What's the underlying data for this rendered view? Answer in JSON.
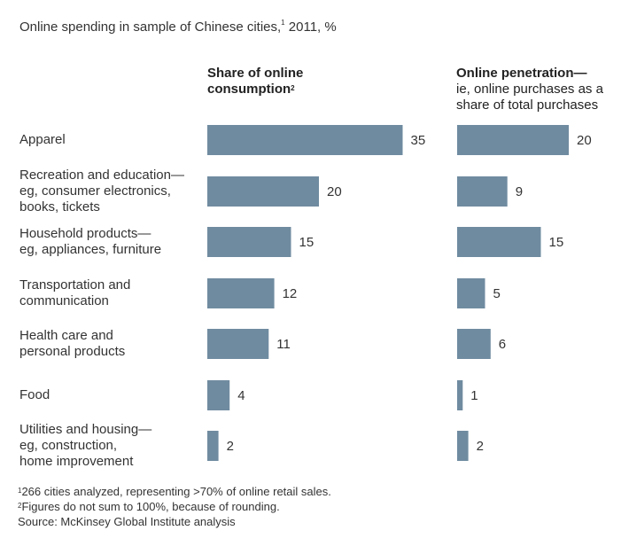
{
  "title": "Online spending in sample of Chinese cities,",
  "title_sup": "1",
  "title_suffix": " 2011, %",
  "col1": {
    "line1": "Share of online",
    "line2": "consumption",
    "sup": "2"
  },
  "col2": {
    "line1": "Online penetration—",
    "line2": "ie, online purchases as a",
    "line3": "share of total purchases"
  },
  "colors": {
    "bar": "#6f8ba0",
    "text": "#333333"
  },
  "chart_data": {
    "type": "bar",
    "orientation": "horizontal",
    "categories": [
      "Apparel",
      "Recreation and education— eg, consumer electronics, books, tickets",
      "Household products— eg, appliances, furniture",
      "Transportation and communication",
      "Health care and personal products",
      "Food",
      "Utilities and housing— eg, construction, home improvement"
    ],
    "series": [
      {
        "name": "Share of online consumption",
        "values": [
          35,
          20,
          15,
          12,
          11,
          4,
          2
        ]
      },
      {
        "name": "Online penetration—ie, online purchases as a share of total purchases",
        "values": [
          20,
          9,
          15,
          5,
          6,
          1,
          2
        ]
      }
    ]
  },
  "category_lines": [
    [
      "Apparel"
    ],
    [
      "Recreation and education—",
      "eg, consumer electronics,",
      "books, tickets"
    ],
    [
      "Household products—",
      "eg, appliances, furniture"
    ],
    [
      "Transportation and",
      "communication"
    ],
    [
      "Health care and",
      "personal products"
    ],
    [
      "Food"
    ],
    [
      "Utilities and housing—",
      "eg, construction,",
      "home improvement"
    ]
  ],
  "footnotes": {
    "f1_sup": "1",
    "f1": "266 cities analyzed, representing >70% of online retail sales.",
    "f2_sup": "2",
    "f2": "Figures do not sum to 100%, because of rounding.",
    "source": " Source: McKinsey Global Institute analysis"
  }
}
